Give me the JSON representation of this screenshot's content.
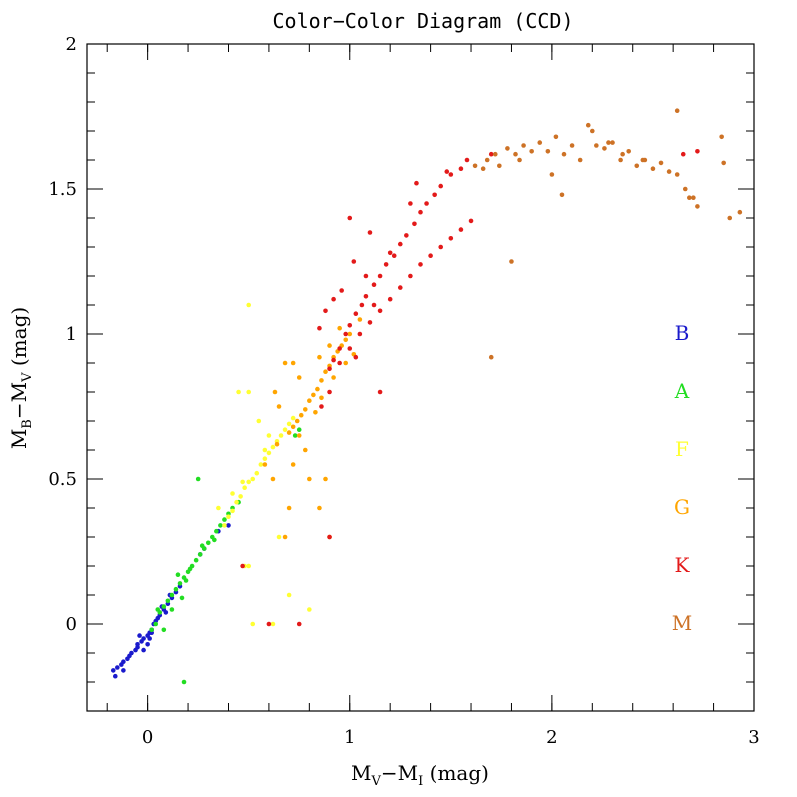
{
  "chart_data": {
    "type": "scatter",
    "title": "Color−Color Diagram (CCD)",
    "xlabel": {
      "main": "M",
      "sub1": "V",
      "mid": "−M",
      "sub2": "I",
      "tail": " (mag)"
    },
    "ylabel": {
      "main": "M",
      "sub1": "B",
      "mid": "−M",
      "sub2": "V",
      "tail": " (mag)"
    },
    "xlim": [
      -0.3,
      3.0
    ],
    "ylim": [
      -0.3,
      2.0
    ],
    "x_ticks": [
      0,
      1,
      2,
      3
    ],
    "x_tick_labels": [
      "0",
      "1",
      "2",
      "3"
    ],
    "y_ticks": [
      0,
      0.5,
      1,
      1.5,
      2
    ],
    "y_tick_labels": [
      "0",
      "0.5",
      "1",
      "1.5",
      "2"
    ],
    "grid": false,
    "legend_position": "right",
    "series": [
      {
        "name": "B",
        "color": "#1a1acc",
        "points": [
          [
            -0.17,
            -0.16
          ],
          [
            -0.15,
            -0.15
          ],
          [
            -0.13,
            -0.14
          ],
          [
            -0.12,
            -0.13
          ],
          [
            -0.1,
            -0.12
          ],
          [
            -0.08,
            -0.1
          ],
          [
            -0.06,
            -0.09
          ],
          [
            -0.05,
            -0.07
          ],
          [
            -0.03,
            -0.06
          ],
          [
            -0.02,
            -0.05
          ],
          [
            0.0,
            -0.04
          ],
          [
            0.01,
            -0.03
          ],
          [
            0.02,
            -0.02
          ],
          [
            0.03,
            0.0
          ],
          [
            0.05,
            0.02
          ],
          [
            0.06,
            0.03
          ],
          [
            0.08,
            0.05
          ],
          [
            0.1,
            0.07
          ],
          [
            0.12,
            0.09
          ],
          [
            0.14,
            0.11
          ],
          [
            0.16,
            0.13
          ],
          [
            -0.16,
            -0.18
          ],
          [
            -0.09,
            -0.11
          ],
          [
            -0.04,
            -0.04
          ],
          [
            0.0,
            -0.07
          ],
          [
            0.04,
            0.01
          ],
          [
            0.07,
            0.06
          ],
          [
            -0.05,
            -0.08
          ],
          [
            0.02,
            -0.03
          ],
          [
            0.11,
            0.1
          ],
          [
            0.26,
            0.24
          ],
          [
            0.28,
            0.26
          ],
          [
            0.35,
            0.32
          ],
          [
            0.4,
            0.34
          ],
          [
            -0.02,
            -0.09
          ],
          [
            -0.12,
            -0.16
          ],
          [
            0.09,
            0.04
          ],
          [
            0.01,
            -0.05
          ]
        ]
      },
      {
        "name": "A",
        "color": "#22dd22",
        "points": [
          [
            0.02,
            -0.02
          ],
          [
            0.04,
            0.0
          ],
          [
            0.06,
            0.04
          ],
          [
            0.08,
            0.06
          ],
          [
            0.1,
            0.08
          ],
          [
            0.12,
            0.1
          ],
          [
            0.14,
            0.12
          ],
          [
            0.16,
            0.14
          ],
          [
            0.18,
            0.16
          ],
          [
            0.2,
            0.18
          ],
          [
            0.22,
            0.2
          ],
          [
            0.24,
            0.22
          ],
          [
            0.26,
            0.24
          ],
          [
            0.28,
            0.26
          ],
          [
            0.3,
            0.28
          ],
          [
            0.32,
            0.3
          ],
          [
            0.34,
            0.32
          ],
          [
            0.36,
            0.34
          ],
          [
            0.38,
            0.36
          ],
          [
            0.4,
            0.38
          ],
          [
            0.42,
            0.4
          ],
          [
            0.45,
            0.42
          ],
          [
            0.25,
            0.5
          ],
          [
            0.18,
            -0.2
          ],
          [
            0.05,
            0.05
          ],
          [
            0.15,
            0.17
          ],
          [
            0.21,
            0.19
          ],
          [
            0.27,
            0.27
          ],
          [
            0.33,
            0.29
          ],
          [
            0.19,
            0.15
          ],
          [
            0.73,
            0.65
          ],
          [
            0.75,
            0.67
          ],
          [
            0.12,
            0.05
          ],
          [
            0.08,
            -0.02
          ],
          [
            0.17,
            0.09
          ]
        ]
      },
      {
        "name": "F",
        "color": "#ffff33",
        "points": [
          [
            0.38,
            0.34
          ],
          [
            0.4,
            0.37
          ],
          [
            0.42,
            0.39
          ],
          [
            0.44,
            0.42
          ],
          [
            0.46,
            0.44
          ],
          [
            0.48,
            0.47
          ],
          [
            0.5,
            0.49
          ],
          [
            0.52,
            0.5
          ],
          [
            0.54,
            0.52
          ],
          [
            0.56,
            0.55
          ],
          [
            0.58,
            0.57
          ],
          [
            0.6,
            0.59
          ],
          [
            0.62,
            0.61
          ],
          [
            0.64,
            0.63
          ],
          [
            0.66,
            0.65
          ],
          [
            0.68,
            0.67
          ],
          [
            0.7,
            0.69
          ],
          [
            0.72,
            0.71
          ],
          [
            0.5,
            1.1
          ],
          [
            0.45,
            0.8
          ],
          [
            0.5,
            0.8
          ],
          [
            0.48,
            0.2
          ],
          [
            0.5,
            0.2
          ],
          [
            0.52,
            0.0
          ],
          [
            0.62,
            0.0
          ],
          [
            0.35,
            0.4
          ],
          [
            0.55,
            0.7
          ],
          [
            0.6,
            0.65
          ],
          [
            0.42,
            0.45
          ],
          [
            0.58,
            0.6
          ],
          [
            0.7,
            0.1
          ],
          [
            0.8,
            0.05
          ],
          [
            0.65,
            0.3
          ],
          [
            0.47,
            0.49
          ]
        ]
      },
      {
        "name": "G",
        "color": "#ffa500",
        "points": [
          [
            0.7,
            0.66
          ],
          [
            0.72,
            0.68
          ],
          [
            0.74,
            0.7
          ],
          [
            0.76,
            0.72
          ],
          [
            0.78,
            0.74
          ],
          [
            0.8,
            0.77
          ],
          [
            0.82,
            0.79
          ],
          [
            0.84,
            0.81
          ],
          [
            0.86,
            0.84
          ],
          [
            0.88,
            0.87
          ],
          [
            0.9,
            0.89
          ],
          [
            0.92,
            0.92
          ],
          [
            0.94,
            0.94
          ],
          [
            0.96,
            0.96
          ],
          [
            0.98,
            0.98
          ],
          [
            1.0,
            1.0
          ],
          [
            0.85,
            0.92
          ],
          [
            0.9,
            0.96
          ],
          [
            0.95,
            1.02
          ],
          [
            0.75,
            0.85
          ],
          [
            0.68,
            0.9
          ],
          [
            0.72,
            0.9
          ],
          [
            0.78,
            0.6
          ],
          [
            0.8,
            0.5
          ],
          [
            0.7,
            0.4
          ],
          [
            0.72,
            0.55
          ],
          [
            0.65,
            0.75
          ],
          [
            0.63,
            0.8
          ],
          [
            0.88,
            0.5
          ],
          [
            0.85,
            0.4
          ],
          [
            0.9,
            0.3
          ],
          [
            0.62,
            0.5
          ],
          [
            0.68,
            0.3
          ],
          [
            0.75,
            0.65
          ],
          [
            1.02,
            0.93
          ],
          [
            1.05,
            1.05
          ],
          [
            0.86,
            0.78
          ],
          [
            0.92,
            0.85
          ],
          [
            0.98,
            0.9
          ],
          [
            0.83,
            0.73
          ],
          [
            0.58,
            0.55
          ],
          [
            0.64,
            0.62
          ]
        ]
      },
      {
        "name": "K",
        "color": "#e31a1a",
        "points": [
          [
            0.9,
            0.88
          ],
          [
            0.92,
            0.91
          ],
          [
            0.95,
            0.95
          ],
          [
            0.98,
            1.0
          ],
          [
            1.0,
            1.03
          ],
          [
            1.03,
            1.07
          ],
          [
            1.06,
            1.1
          ],
          [
            1.08,
            1.13
          ],
          [
            1.12,
            1.17
          ],
          [
            1.15,
            1.2
          ],
          [
            1.18,
            1.24
          ],
          [
            1.22,
            1.27
          ],
          [
            1.25,
            1.31
          ],
          [
            1.28,
            1.34
          ],
          [
            1.32,
            1.38
          ],
          [
            1.35,
            1.42
          ],
          [
            1.38,
            1.45
          ],
          [
            1.42,
            1.48
          ],
          [
            1.45,
            1.51
          ],
          [
            1.5,
            1.55
          ],
          [
            1.55,
            1.57
          ],
          [
            1.58,
            1.6
          ],
          [
            0.95,
            0.9
          ],
          [
            1.0,
            0.95
          ],
          [
            1.05,
            1.0
          ],
          [
            1.1,
            1.04
          ],
          [
            1.15,
            1.08
          ],
          [
            1.2,
            1.12
          ],
          [
            1.25,
            1.16
          ],
          [
            1.3,
            1.2
          ],
          [
            1.35,
            1.24
          ],
          [
            1.4,
            1.27
          ],
          [
            1.45,
            1.3
          ],
          [
            1.5,
            1.33
          ],
          [
            1.55,
            1.36
          ],
          [
            1.6,
            1.39
          ],
          [
            0.88,
            1.08
          ],
          [
            0.92,
            1.12
          ],
          [
            0.96,
            1.15
          ],
          [
            1.02,
            1.25
          ],
          [
            1.08,
            1.2
          ],
          [
            1.12,
            1.1
          ],
          [
            0.9,
            0.8
          ],
          [
            0.86,
            0.75
          ],
          [
            1.0,
            1.4
          ],
          [
            1.1,
            1.35
          ],
          [
            1.2,
            1.28
          ],
          [
            1.3,
            1.45
          ],
          [
            0.85,
            1.02
          ],
          [
            1.03,
            0.92
          ],
          [
            0.75,
            0.0
          ],
          [
            0.6,
            0.0
          ],
          [
            0.47,
            0.2
          ],
          [
            0.9,
            0.3
          ],
          [
            1.15,
            0.8
          ],
          [
            1.7,
            1.62
          ],
          [
            2.65,
            1.62
          ],
          [
            2.72,
            1.63
          ],
          [
            1.48,
            1.56
          ],
          [
            1.33,
            1.52
          ]
        ]
      },
      {
        "name": "M",
        "color": "#cd7226",
        "points": [
          [
            1.62,
            1.58
          ],
          [
            1.68,
            1.6
          ],
          [
            1.72,
            1.62
          ],
          [
            1.78,
            1.64
          ],
          [
            1.82,
            1.62
          ],
          [
            1.86,
            1.65
          ],
          [
            1.9,
            1.63
          ],
          [
            1.94,
            1.66
          ],
          [
            1.98,
            1.63
          ],
          [
            2.02,
            1.68
          ],
          [
            2.06,
            1.62
          ],
          [
            2.1,
            1.65
          ],
          [
            2.14,
            1.6
          ],
          [
            2.18,
            1.72
          ],
          [
            2.22,
            1.65
          ],
          [
            2.26,
            1.64
          ],
          [
            2.3,
            1.66
          ],
          [
            2.34,
            1.6
          ],
          [
            2.38,
            1.63
          ],
          [
            2.42,
            1.58
          ],
          [
            2.46,
            1.6
          ],
          [
            2.5,
            1.57
          ],
          [
            2.54,
            1.59
          ],
          [
            2.58,
            1.56
          ],
          [
            2.62,
            1.55
          ],
          [
            2.66,
            1.5
          ],
          [
            2.7,
            1.47
          ],
          [
            2.72,
            1.44
          ],
          [
            2.62,
            1.77
          ],
          [
            2.84,
            1.68
          ],
          [
            2.85,
            1.59
          ],
          [
            2.88,
            1.4
          ],
          [
            2.93,
            1.42
          ],
          [
            2.05,
            1.48
          ],
          [
            1.7,
            0.92
          ],
          [
            1.8,
            1.25
          ],
          [
            1.74,
            1.58
          ],
          [
            2.0,
            1.55
          ],
          [
            2.2,
            1.7
          ],
          [
            2.28,
            1.66
          ],
          [
            2.35,
            1.62
          ],
          [
            2.68,
            1.47
          ],
          [
            2.45,
            1.6
          ],
          [
            1.66,
            1.57
          ],
          [
            1.84,
            1.6
          ]
        ]
      }
    ]
  }
}
